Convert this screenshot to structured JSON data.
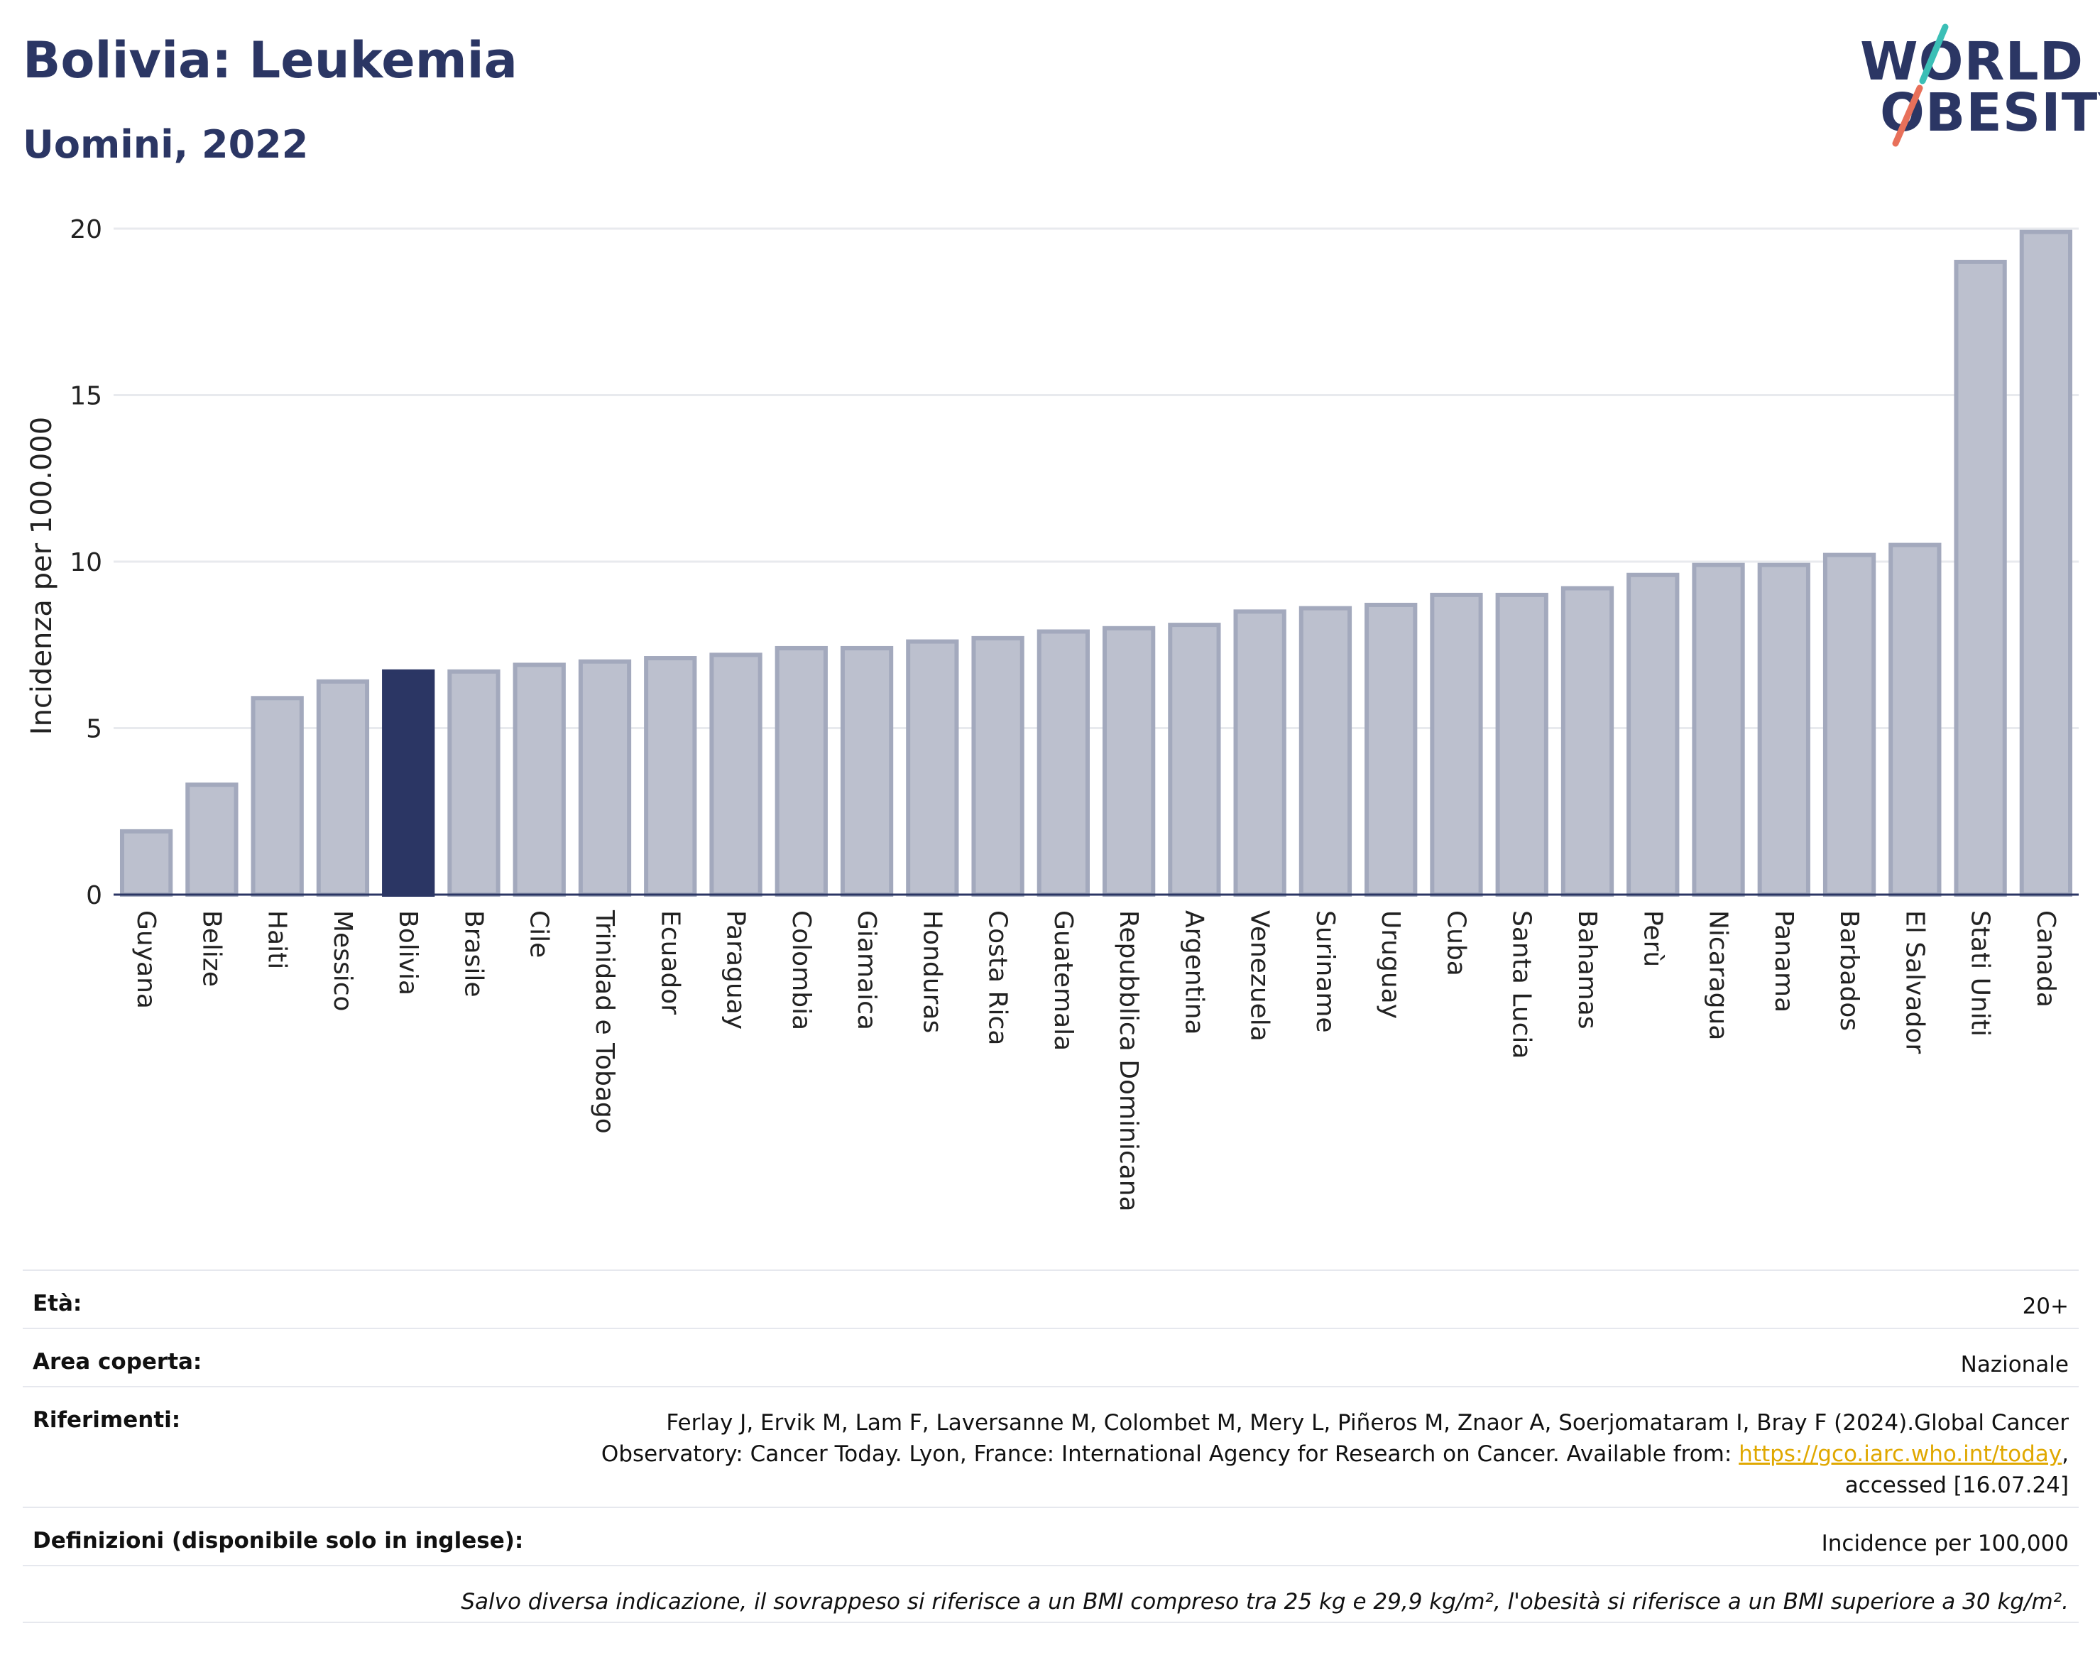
{
  "header": {
    "title": "Bolivia: Leukemia",
    "subtitle": "Uomini, 2022"
  },
  "logo": {
    "line1": "WORLD",
    "line2": "OBESITY",
    "colors": {
      "text": "#2b3664",
      "slash_top": "#3bbfb6",
      "slash_bottom": "#e8705a"
    }
  },
  "colors": {
    "bar": "#bcc0ce",
    "bar_stroke": "#a3a9bd",
    "highlight": "#2b3664",
    "grid": "#e8eaee",
    "axis": "#2b3664"
  },
  "chart_data": {
    "type": "bar",
    "ylabel": "Incidenza per 100.000",
    "ylim": [
      0,
      20
    ],
    "yticks": [
      0,
      5,
      10,
      15,
      20
    ],
    "grid": true,
    "highlight": "Bolivia",
    "categories": [
      "Guyana",
      "Belize",
      "Haiti",
      "Messico",
      "Bolivia",
      "Brasile",
      "Cile",
      "Trinidad e Tobago",
      "Ecuador",
      "Paraguay",
      "Colombia",
      "Giamaica",
      "Honduras",
      "Costa Rica",
      "Guatemala",
      "Repubblica Dominicana",
      "Argentina",
      "Venezuela",
      "Suriname",
      "Uruguay",
      "Cuba",
      "Santa Lucia",
      "Bahamas",
      "Perù",
      "Nicaragua",
      "Panama",
      "Barbados",
      "El Salvador",
      "Stati Uniti",
      "Canada"
    ],
    "values": [
      1.9,
      3.3,
      5.9,
      6.4,
      6.7,
      6.7,
      6.9,
      7.0,
      7.1,
      7.2,
      7.4,
      7.4,
      7.6,
      7.7,
      7.9,
      8.0,
      8.1,
      8.5,
      8.6,
      8.7,
      9.0,
      9.0,
      9.2,
      9.6,
      9.9,
      9.9,
      10.2,
      10.5,
      19.0,
      19.9
    ]
  },
  "info": {
    "age_label": "Età:",
    "age_value": "20+",
    "area_label": "Area coperta:",
    "area_value": "Nazionale",
    "refs_label": "Riferimenti:",
    "refs_text1": "Ferlay J, Ervik M, Lam F, Laversanne M, Colombet M, Mery L, Piñeros M, Znaor A, Soerjomataram I, Bray F (2024).Global Cancer",
    "refs_text2": "Observatory: Cancer Today. Lyon, France: International Agency for Research on Cancer. Available from: ",
    "refs_link": "https://gco.iarc.who.int/today",
    "refs_text3": ",",
    "refs_text4": "accessed [16.07.24]",
    "defs_label": "Definizioni (disponibile solo in inglese):",
    "defs_value": "Incidence per 100,000",
    "note": "Salvo diversa indicazione, il sovrappeso si riferisce a un BMI compreso tra 25 kg e 29,9 kg/m², l'obesità si riferisce a un BMI superiore a 30 kg/m²."
  }
}
